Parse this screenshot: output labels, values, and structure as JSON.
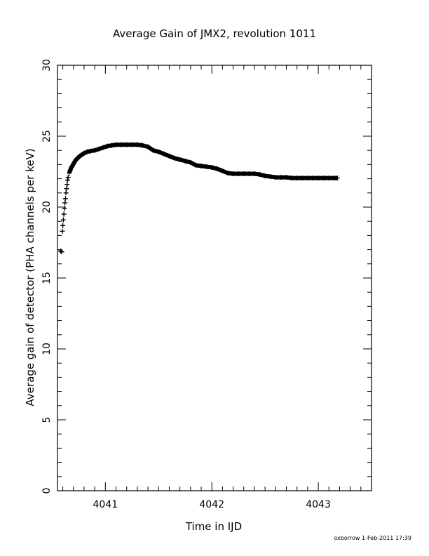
{
  "chart_data": {
    "type": "scatter",
    "title": "Average Gain of JMX2, revolution 1011",
    "xlabel": "Time in IJD",
    "ylabel": "Average gain of detector (PHA channels per keV)",
    "xlim": [
      4040.55,
      4043.5
    ],
    "ylim": [
      0,
      30
    ],
    "x_ticks": [
      4041,
      4042,
      4043
    ],
    "x_tick_labels": [
      "4041",
      "4042",
      "4043"
    ],
    "y_ticks": [
      0,
      5,
      10,
      15,
      20,
      25,
      30
    ],
    "y_tick_labels": [
      "0",
      "5",
      "10",
      "15",
      "20",
      "25",
      "30"
    ],
    "grid": false,
    "marker": "plus",
    "series": [
      {
        "color": "#000000",
        "points": [
          [
            4040.58,
            16.9
          ],
          [
            4040.59,
            16.85
          ],
          [
            4040.595,
            18.3
          ],
          [
            4040.6,
            18.7
          ],
          [
            4040.605,
            19.1
          ],
          [
            4040.61,
            19.5
          ],
          [
            4040.615,
            19.9
          ],
          [
            4040.62,
            20.3
          ],
          [
            4040.625,
            20.6
          ],
          [
            4040.63,
            21.0
          ],
          [
            4040.635,
            21.3
          ],
          [
            4040.64,
            21.6
          ],
          [
            4040.645,
            21.9
          ],
          [
            4040.65,
            22.1
          ],
          [
            4040.66,
            22.4
          ],
          [
            4040.67,
            22.6
          ],
          [
            4040.68,
            22.8
          ],
          [
            4040.69,
            22.9
          ],
          [
            4040.7,
            23.05
          ],
          [
            4040.72,
            23.3
          ],
          [
            4040.74,
            23.45
          ],
          [
            4040.76,
            23.6
          ],
          [
            4040.78,
            23.7
          ],
          [
            4040.8,
            23.8
          ],
          [
            4040.83,
            23.9
          ],
          [
            4040.86,
            23.95
          ],
          [
            4040.9,
            24.0
          ],
          [
            4040.94,
            24.1
          ],
          [
            4040.98,
            24.2
          ],
          [
            4041.02,
            24.3
          ],
          [
            4041.06,
            24.35
          ],
          [
            4041.1,
            24.4
          ],
          [
            4041.15,
            24.4
          ],
          [
            4041.2,
            24.4
          ],
          [
            4041.25,
            24.4
          ],
          [
            4041.3,
            24.4
          ],
          [
            4041.35,
            24.35
          ],
          [
            4041.4,
            24.25
          ],
          [
            4041.45,
            24.0
          ],
          [
            4041.5,
            23.9
          ],
          [
            4041.55,
            23.75
          ],
          [
            4041.6,
            23.6
          ],
          [
            4041.65,
            23.45
          ],
          [
            4041.7,
            23.35
          ],
          [
            4041.75,
            23.25
          ],
          [
            4041.8,
            23.15
          ],
          [
            4041.85,
            22.95
          ],
          [
            4041.9,
            22.9
          ],
          [
            4041.95,
            22.85
          ],
          [
            4042.0,
            22.8
          ],
          [
            4042.05,
            22.7
          ],
          [
            4042.1,
            22.55
          ],
          [
            4042.15,
            22.4
          ],
          [
            4042.2,
            22.35
          ],
          [
            4042.25,
            22.35
          ],
          [
            4042.3,
            22.35
          ],
          [
            4042.35,
            22.35
          ],
          [
            4042.4,
            22.35
          ],
          [
            4042.45,
            22.3
          ],
          [
            4042.5,
            22.2
          ],
          [
            4042.55,
            22.15
          ],
          [
            4042.6,
            22.1
          ],
          [
            4042.65,
            22.1
          ],
          [
            4042.7,
            22.1
          ],
          [
            4042.75,
            22.05
          ],
          [
            4042.8,
            22.05
          ],
          [
            4042.85,
            22.05
          ],
          [
            4042.9,
            22.05
          ],
          [
            4042.95,
            22.05
          ],
          [
            4043.0,
            22.05
          ],
          [
            4043.05,
            22.05
          ],
          [
            4043.1,
            22.05
          ],
          [
            4043.15,
            22.05
          ],
          [
            4043.18,
            22.05
          ]
        ]
      }
    ]
  },
  "footer": {
    "credit": "oxborrow  1-Feb-2011 17:39"
  }
}
